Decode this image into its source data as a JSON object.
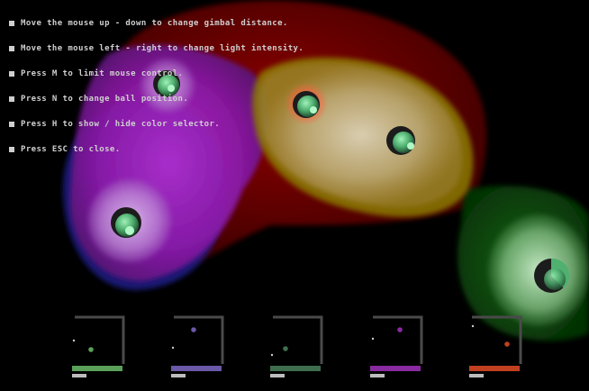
{
  "window": {
    "title": ""
  },
  "instructions": [
    {
      "id": "move-up-down",
      "text": "Move the mouse up - down to change gimbal distance."
    },
    {
      "id": "move-left-right",
      "text": "Move the mouse left - right to change light intensity."
    },
    {
      "id": "press-m",
      "text": "Press M to limit mouse control."
    },
    {
      "id": "press-n",
      "text": "Press N to change ball position."
    },
    {
      "id": "press-h",
      "text": "Press H to show / hide color selector."
    },
    {
      "id": "press-esc",
      "text": "Press ESC to close."
    }
  ],
  "colors": {
    "background": "#000000",
    "ball": "#5fbf80",
    "purple_region": "#a020c0",
    "red_region": "#8a0000",
    "green_region": "#0a5a0a",
    "yellow_edge": "#b0a000",
    "blue_edge": "#2020a0"
  },
  "balls": [
    {
      "name": "ball-purple-top",
      "glow": "#c070e0"
    },
    {
      "name": "ball-purple-bottom",
      "glow": "#c0a0e0"
    },
    {
      "name": "ball-red",
      "glow": "#ff7050"
    },
    {
      "name": "ball-olive",
      "glow": "#d0e0c0"
    },
    {
      "name": "ball-green",
      "glow": "#c0e8c0"
    }
  ],
  "color_selectors": [
    {
      "name": "selector-1",
      "color": "#5aa05a",
      "marker": "#5aa05a"
    },
    {
      "name": "selector-2",
      "color": "#6a58a8",
      "marker": "#6a58a8"
    },
    {
      "name": "selector-3",
      "color": "#3e6e4e",
      "marker": "#3e6e4e"
    },
    {
      "name": "selector-4",
      "color": "#8a2aa0",
      "marker": "#8a2aa0"
    },
    {
      "name": "selector-5",
      "color": "#c04020",
      "marker": "#c04020"
    }
  ]
}
